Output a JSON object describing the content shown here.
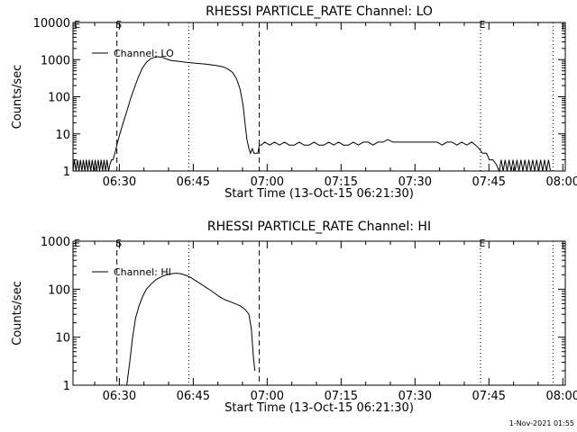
{
  "chart_data": [
    {
      "type": "line",
      "title": "RHESSI PARTICLE_RATE Channel: LO",
      "xlabel": "Start Time (13-Oct-15 06:21:30)",
      "ylabel": "Counts/sec",
      "yscale": "log",
      "ylim": [
        1,
        10000
      ],
      "xlim_minutes": [
        -0.9,
        99
      ],
      "x_ticks": [
        {
          "label": "06:30",
          "value": 8.5
        },
        {
          "label": "06:45",
          "value": 23.5
        },
        {
          "label": "07:00",
          "value": 38.5
        },
        {
          "label": "07:15",
          "value": 53.5
        },
        {
          "label": "07:30",
          "value": 68.5
        },
        {
          "label": "07:45",
          "value": 83.5
        },
        {
          "label": "08:00",
          "value": 98.5
        }
      ],
      "y_ticks": [
        {
          "label": "1",
          "value": 1
        },
        {
          "label": "10",
          "value": 10
        },
        {
          "label": "100",
          "value": 100
        },
        {
          "label": "1000",
          "value": 1000
        },
        {
          "label": "10000",
          "value": 10000
        }
      ],
      "grid": false,
      "legend": {
        "position": "top-left",
        "label": "Channel: LO"
      },
      "markers": [
        {
          "label": "E",
          "x": -0.4,
          "style": "none"
        },
        {
          "label": "S",
          "x": 8.0,
          "style": "dashed"
        },
        {
          "label": "",
          "x": 22.6,
          "style": "dotted"
        },
        {
          "label": "",
          "x": 36.9,
          "style": "dashed"
        },
        {
          "label": "E",
          "x": 81.8,
          "style": "dotted"
        },
        {
          "label": "",
          "x": 96.5,
          "style": "dotted"
        }
      ],
      "series": [
        {
          "name": "Channel: LO",
          "points": [
            [
              -0.9,
              1.0
            ],
            [
              -0.6,
              2.0
            ],
            [
              -0.3,
              1.0
            ],
            [
              0.0,
              2.0
            ],
            [
              0.3,
              1.0
            ],
            [
              0.6,
              2.0
            ],
            [
              0.9,
              1.0
            ],
            [
              1.2,
              2.0
            ],
            [
              1.5,
              1.0
            ],
            [
              1.8,
              2.0
            ],
            [
              2.1,
              1.0
            ],
            [
              2.4,
              2.0
            ],
            [
              2.7,
              1.0
            ],
            [
              3.0,
              2.0
            ],
            [
              3.3,
              1.0
            ],
            [
              3.6,
              2.0
            ],
            [
              3.9,
              1.0
            ],
            [
              4.2,
              2.0
            ],
            [
              4.5,
              1.0
            ],
            [
              4.8,
              2.0
            ],
            [
              5.1,
              1.0
            ],
            [
              5.4,
              2.0
            ],
            [
              5.7,
              1.0
            ],
            [
              6.0,
              2.0
            ],
            [
              6.3,
              1.0
            ],
            [
              6.6,
              1.5
            ],
            [
              6.9,
              2.0
            ],
            [
              7.2,
              2.0
            ],
            [
              7.6,
              3.0
            ],
            [
              8.0,
              5.0
            ],
            [
              8.6,
              10
            ],
            [
              9.3,
              20
            ],
            [
              10.0,
              40
            ],
            [
              10.8,
              90
            ],
            [
              11.6,
              180
            ],
            [
              12.4,
              350
            ],
            [
              13.2,
              600
            ],
            [
              14.0,
              850
            ],
            [
              14.8,
              1050
            ],
            [
              15.6,
              1150
            ],
            [
              16.4,
              1200
            ],
            [
              17.2,
              1150
            ],
            [
              18.0,
              1050
            ],
            [
              19.0,
              950
            ],
            [
              20.5,
              900
            ],
            [
              22.0,
              850
            ],
            [
              24.0,
              800
            ],
            [
              26.0,
              760
            ],
            [
              28.0,
              700
            ],
            [
              29.5,
              640
            ],
            [
              30.5,
              560
            ],
            [
              31.5,
              450
            ],
            [
              32.3,
              300
            ],
            [
              33.0,
              160
            ],
            [
              33.6,
              60
            ],
            [
              34.0,
              20
            ],
            [
              34.4,
              7
            ],
            [
              34.8,
              4
            ],
            [
              35.1,
              3
            ],
            [
              35.5,
              4
            ],
            [
              35.8,
              3
            ],
            [
              36.2,
              3
            ],
            [
              36.6,
              3
            ],
            [
              36.9,
              5
            ],
            [
              37.3,
              5
            ],
            [
              38.0,
              6
            ],
            [
              39.0,
              5
            ],
            [
              40.0,
              6
            ],
            [
              41.0,
              5
            ],
            [
              42.0,
              6
            ],
            [
              43.0,
              5
            ],
            [
              44.0,
              5
            ],
            [
              45.0,
              6
            ],
            [
              46.0,
              5
            ],
            [
              47.0,
              5
            ],
            [
              48.0,
              6
            ],
            [
              49.0,
              5
            ],
            [
              50.0,
              5
            ],
            [
              51.0,
              6
            ],
            [
              52.0,
              5
            ],
            [
              53.0,
              6
            ],
            [
              54.0,
              5
            ],
            [
              55.0,
              5
            ],
            [
              56.0,
              6
            ],
            [
              57.0,
              5
            ],
            [
              58.0,
              6
            ],
            [
              59.0,
              6
            ],
            [
              60.0,
              5
            ],
            [
              61.0,
              6
            ],
            [
              62.0,
              6
            ],
            [
              63.0,
              7
            ],
            [
              64.0,
              6
            ],
            [
              65.0,
              6
            ],
            [
              66.0,
              6
            ],
            [
              67.0,
              6
            ],
            [
              68.0,
              6
            ],
            [
              69.0,
              6
            ],
            [
              70.0,
              6
            ],
            [
              71.0,
              6
            ],
            [
              72.0,
              6
            ],
            [
              73.0,
              6
            ],
            [
              74.0,
              5
            ],
            [
              75.0,
              6
            ],
            [
              76.0,
              6
            ],
            [
              77.0,
              5
            ],
            [
              78.0,
              6
            ],
            [
              79.0,
              5
            ],
            [
              80.0,
              6
            ],
            [
              80.8,
              5
            ],
            [
              81.5,
              4
            ],
            [
              82.2,
              3
            ],
            [
              83.0,
              3
            ],
            [
              83.6,
              2
            ],
            [
              84.3,
              2
            ],
            [
              85.0,
              1.5
            ],
            [
              85.6,
              1.0
            ],
            [
              86.0,
              2.0
            ],
            [
              86.4,
              1.0
            ],
            [
              86.8,
              2.0
            ],
            [
              87.2,
              1.0
            ],
            [
              87.6,
              2.0
            ],
            [
              88.0,
              1.0
            ],
            [
              88.4,
              2.0
            ],
            [
              88.8,
              1.0
            ],
            [
              89.2,
              2.0
            ],
            [
              89.6,
              1.0
            ],
            [
              90.0,
              2.0
            ],
            [
              90.4,
              1.0
            ],
            [
              90.8,
              2.0
            ],
            [
              91.2,
              1.0
            ],
            [
              91.6,
              2.0
            ],
            [
              92.0,
              1.0
            ],
            [
              92.4,
              2.0
            ],
            [
              92.8,
              1.0
            ],
            [
              93.2,
              2.0
            ],
            [
              93.6,
              1.0
            ],
            [
              94.0,
              2.0
            ],
            [
              94.4,
              1.0
            ],
            [
              94.8,
              2.0
            ],
            [
              95.2,
              1.0
            ],
            [
              95.6,
              2.0
            ],
            [
              96.0,
              1.0
            ]
          ]
        }
      ]
    },
    {
      "type": "line",
      "title": "RHESSI PARTICLE_RATE Channel: HI",
      "xlabel": "Start Time (13-Oct-15 06:21:30)",
      "ylabel": "Counts/sec",
      "yscale": "log",
      "ylim": [
        1,
        1000
      ],
      "xlim_minutes": [
        -0.9,
        99
      ],
      "x_ticks": [
        {
          "label": "06:30",
          "value": 8.5
        },
        {
          "label": "06:45",
          "value": 23.5
        },
        {
          "label": "07:00",
          "value": 38.5
        },
        {
          "label": "07:15",
          "value": 53.5
        },
        {
          "label": "07:30",
          "value": 68.5
        },
        {
          "label": "07:45",
          "value": 83.5
        },
        {
          "label": "08:00",
          "value": 98.5
        }
      ],
      "y_ticks": [
        {
          "label": "1",
          "value": 1
        },
        {
          "label": "10",
          "value": 10
        },
        {
          "label": "100",
          "value": 100
        },
        {
          "label": "1000",
          "value": 1000
        }
      ],
      "grid": false,
      "legend": {
        "position": "top-left",
        "label": "Channel: HI"
      },
      "markers": [
        {
          "label": "E",
          "x": -0.4,
          "style": "none"
        },
        {
          "label": "S",
          "x": 8.0,
          "style": "dashed"
        },
        {
          "label": "",
          "x": 22.6,
          "style": "dotted"
        },
        {
          "label": "",
          "x": 36.9,
          "style": "dashed"
        },
        {
          "label": "E",
          "x": 81.8,
          "style": "dotted"
        },
        {
          "label": "",
          "x": 96.5,
          "style": "dotted"
        }
      ],
      "series": [
        {
          "name": "Channel: HI",
          "points": [
            [
              10.0,
              1.0
            ],
            [
              10.6,
              3
            ],
            [
              11.2,
              10
            ],
            [
              11.8,
              25
            ],
            [
              12.5,
              45
            ],
            [
              13.2,
              70
            ],
            [
              14.0,
              100
            ],
            [
              15.0,
              130
            ],
            [
              16.0,
              160
            ],
            [
              17.0,
              180
            ],
            [
              18.0,
              200
            ],
            [
              19.0,
              210
            ],
            [
              20.0,
              215
            ],
            [
              21.0,
              210
            ],
            [
              22.0,
              195
            ],
            [
              23.0,
              175
            ],
            [
              24.0,
              150
            ],
            [
              25.0,
              130
            ],
            [
              26.0,
              110
            ],
            [
              27.0,
              95
            ],
            [
              28.0,
              80
            ],
            [
              29.0,
              68
            ],
            [
              30.0,
              60
            ],
            [
              31.0,
              55
            ],
            [
              32.0,
              50
            ],
            [
              33.0,
              45
            ],
            [
              34.0,
              38
            ],
            [
              34.8,
              30
            ],
            [
              35.3,
              15
            ],
            [
              35.7,
              4
            ],
            [
              36.0,
              2
            ]
          ]
        }
      ]
    }
  ],
  "footer": {
    "timestamp": "1-Nov-2021 01:55"
  }
}
